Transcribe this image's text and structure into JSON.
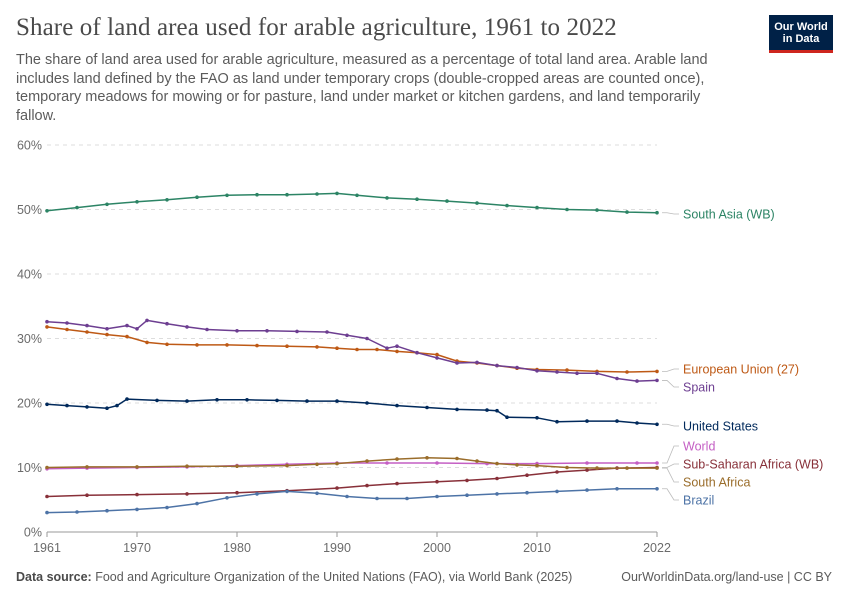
{
  "header": {
    "title": "Share of land area used for arable agriculture, 1961 to 2022",
    "subtitle": "The share of land area used for arable agriculture, measured as a percentage of total land area. Arable land includes land defined by the FAO as land under temporary crops (double-cropped areas are counted once), temporary meadows for mowing or for pasture, land under market or kitchen gardens, and land temporarily fallow.",
    "logo_line1": "Our World",
    "logo_line2": "in Data",
    "logo_color": "#002147",
    "logo_accent": "#ce261e"
  },
  "footer": {
    "source_label": "Data source:",
    "source_text": "Food and Agriculture Organization of the United Nations (FAO), via World Bank (2025)",
    "license": "OurWorldinData.org/land-use | CC BY"
  },
  "chart_data": {
    "type": "line",
    "title": "Share of land area used for arable agriculture, 1961 to 2022",
    "xlabel": "",
    "ylabel": "",
    "xlim": [
      1961,
      2022
    ],
    "ylim": [
      0,
      60
    ],
    "x_ticks": [
      "1961",
      "1970",
      "1980",
      "1990",
      "2000",
      "2010",
      "2022"
    ],
    "y_ticks": [
      "0%",
      "10%",
      "20%",
      "30%",
      "40%",
      "50%",
      "60%"
    ],
    "grid": "horizontal dashed",
    "legend": "right end labels",
    "series": [
      {
        "name": "South Asia (WB)",
        "color": "#2c8465",
        "points": [
          [
            1961,
            49.8
          ],
          [
            1964,
            50.3
          ],
          [
            1967,
            50.8
          ],
          [
            1970,
            51.2
          ],
          [
            1973,
            51.5
          ],
          [
            1976,
            51.9
          ],
          [
            1979,
            52.2
          ],
          [
            1982,
            52.3
          ],
          [
            1985,
            52.3
          ],
          [
            1988,
            52.4
          ],
          [
            1990,
            52.5
          ],
          [
            1992,
            52.2
          ],
          [
            1995,
            51.8
          ],
          [
            1998,
            51.6
          ],
          [
            2001,
            51.3
          ],
          [
            2004,
            51.0
          ],
          [
            2007,
            50.6
          ],
          [
            2010,
            50.3
          ],
          [
            2013,
            50.0
          ],
          [
            2016,
            49.9
          ],
          [
            2019,
            49.6
          ],
          [
            2022,
            49.5
          ]
        ]
      },
      {
        "name": "European Union (27)",
        "color": "#be5915",
        "points": [
          [
            1961,
            31.8
          ],
          [
            1963,
            31.4
          ],
          [
            1965,
            31.0
          ],
          [
            1967,
            30.6
          ],
          [
            1969,
            30.3
          ],
          [
            1971,
            29.4
          ],
          [
            1973,
            29.1
          ],
          [
            1976,
            29.0
          ],
          [
            1979,
            29.0
          ],
          [
            1982,
            28.9
          ],
          [
            1985,
            28.8
          ],
          [
            1988,
            28.7
          ],
          [
            1990,
            28.5
          ],
          [
            1992,
            28.3
          ],
          [
            1994,
            28.3
          ],
          [
            1996,
            28.0
          ],
          [
            1998,
            27.8
          ],
          [
            2000,
            27.5
          ],
          [
            2002,
            26.5
          ],
          [
            2004,
            26.2
          ],
          [
            2006,
            25.8
          ],
          [
            2008,
            25.4
          ],
          [
            2010,
            25.2
          ],
          [
            2013,
            25.1
          ],
          [
            2016,
            24.9
          ],
          [
            2019,
            24.8
          ],
          [
            2022,
            24.9
          ]
        ]
      },
      {
        "name": "Spain",
        "color": "#6d3e91",
        "points": [
          [
            1961,
            32.6
          ],
          [
            1963,
            32.4
          ],
          [
            1965,
            32.0
          ],
          [
            1967,
            31.5
          ],
          [
            1969,
            32.0
          ],
          [
            1970,
            31.5
          ],
          [
            1971,
            32.8
          ],
          [
            1973,
            32.3
          ],
          [
            1975,
            31.8
          ],
          [
            1977,
            31.4
          ],
          [
            1980,
            31.2
          ],
          [
            1983,
            31.2
          ],
          [
            1986,
            31.1
          ],
          [
            1989,
            31.0
          ],
          [
            1991,
            30.5
          ],
          [
            1993,
            30.0
          ],
          [
            1995,
            28.5
          ],
          [
            1996,
            28.8
          ],
          [
            1998,
            27.8
          ],
          [
            2000,
            27.0
          ],
          [
            2002,
            26.2
          ],
          [
            2004,
            26.3
          ],
          [
            2006,
            25.8
          ],
          [
            2008,
            25.5
          ],
          [
            2010,
            25.0
          ],
          [
            2012,
            24.8
          ],
          [
            2014,
            24.6
          ],
          [
            2016,
            24.6
          ],
          [
            2018,
            23.8
          ],
          [
            2020,
            23.4
          ],
          [
            2022,
            23.5
          ]
        ]
      },
      {
        "name": "United States",
        "color": "#00295b",
        "points": [
          [
            1961,
            19.8
          ],
          [
            1963,
            19.6
          ],
          [
            1965,
            19.4
          ],
          [
            1967,
            19.2
          ],
          [
            1968,
            19.6
          ],
          [
            1969,
            20.6
          ],
          [
            1972,
            20.4
          ],
          [
            1975,
            20.3
          ],
          [
            1978,
            20.5
          ],
          [
            1981,
            20.5
          ],
          [
            1984,
            20.4
          ],
          [
            1987,
            20.3
          ],
          [
            1990,
            20.3
          ],
          [
            1993,
            20.0
          ],
          [
            1996,
            19.6
          ],
          [
            1999,
            19.3
          ],
          [
            2002,
            19.0
          ],
          [
            2005,
            18.9
          ],
          [
            2006,
            18.8
          ],
          [
            2007,
            17.8
          ],
          [
            2010,
            17.7
          ],
          [
            2012,
            17.1
          ],
          [
            2015,
            17.2
          ],
          [
            2018,
            17.2
          ],
          [
            2020,
            16.9
          ],
          [
            2022,
            16.7
          ]
        ]
      },
      {
        "name": "World",
        "color": "#c45fc4",
        "points": [
          [
            1961,
            9.8
          ],
          [
            1965,
            9.9
          ],
          [
            1970,
            10.0
          ],
          [
            1975,
            10.1
          ],
          [
            1980,
            10.3
          ],
          [
            1985,
            10.5
          ],
          [
            1990,
            10.7
          ],
          [
            1995,
            10.7
          ],
          [
            2000,
            10.7
          ],
          [
            2005,
            10.6
          ],
          [
            2010,
            10.6
          ],
          [
            2015,
            10.7
          ],
          [
            2020,
            10.7
          ],
          [
            2022,
            10.7
          ]
        ]
      },
      {
        "name": "Sub-Saharan Africa (WB)",
        "color": "#883039",
        "points": [
          [
            1961,
            5.5
          ],
          [
            1965,
            5.7
          ],
          [
            1970,
            5.8
          ],
          [
            1975,
            5.9
          ],
          [
            1980,
            6.1
          ],
          [
            1985,
            6.4
          ],
          [
            1990,
            6.8
          ],
          [
            1993,
            7.2
          ],
          [
            1996,
            7.5
          ],
          [
            2000,
            7.8
          ],
          [
            2003,
            8.0
          ],
          [
            2006,
            8.3
          ],
          [
            2009,
            8.8
          ],
          [
            2012,
            9.3
          ],
          [
            2015,
            9.6
          ],
          [
            2018,
            9.9
          ],
          [
            2022,
            10.0
          ]
        ]
      },
      {
        "name": "South Africa",
        "color": "#9a6d2b",
        "points": [
          [
            1961,
            10.0
          ],
          [
            1965,
            10.1
          ],
          [
            1970,
            10.1
          ],
          [
            1975,
            10.2
          ],
          [
            1980,
            10.2
          ],
          [
            1985,
            10.3
          ],
          [
            1988,
            10.5
          ],
          [
            1990,
            10.6
          ],
          [
            1993,
            11.0
          ],
          [
            1996,
            11.3
          ],
          [
            1999,
            11.5
          ],
          [
            2002,
            11.4
          ],
          [
            2004,
            11.0
          ],
          [
            2006,
            10.6
          ],
          [
            2008,
            10.4
          ],
          [
            2010,
            10.3
          ],
          [
            2013,
            10.0
          ],
          [
            2016,
            9.9
          ],
          [
            2019,
            9.9
          ],
          [
            2022,
            9.9
          ]
        ]
      },
      {
        "name": "Brazil",
        "color": "#4d73a6",
        "points": [
          [
            1961,
            3.0
          ],
          [
            1964,
            3.1
          ],
          [
            1967,
            3.3
          ],
          [
            1970,
            3.5
          ],
          [
            1973,
            3.8
          ],
          [
            1976,
            4.4
          ],
          [
            1979,
            5.3
          ],
          [
            1982,
            5.9
          ],
          [
            1985,
            6.3
          ],
          [
            1988,
            6.0
          ],
          [
            1991,
            5.5
          ],
          [
            1994,
            5.2
          ],
          [
            1997,
            5.2
          ],
          [
            2000,
            5.5
          ],
          [
            2003,
            5.7
          ],
          [
            2006,
            5.9
          ],
          [
            2009,
            6.1
          ],
          [
            2012,
            6.3
          ],
          [
            2015,
            6.5
          ],
          [
            2018,
            6.7
          ],
          [
            2022,
            6.7
          ]
        ]
      }
    ]
  }
}
